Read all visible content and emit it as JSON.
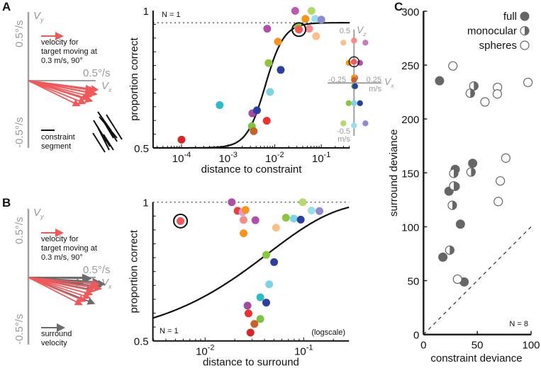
{
  "panel_letters": {
    "a": "A",
    "b": "B",
    "c": "C"
  },
  "diagram_a": {
    "vy_label": "V",
    "vy_sub": "y",
    "vx_label": "V",
    "vx_sub": "x",
    "pos_label": "0.5°/s",
    "neg_label": "-0.5°/s",
    "x_pos_label": "0.5°/s",
    "legend_red": [
      "velocity for",
      "target moving at",
      "0.3 m/s, 90°"
    ],
    "legend_black": [
      "constraint",
      "segment"
    ],
    "red_color": "#f0585a",
    "target_vectors": [
      [
        0.56,
        -0.075
      ],
      [
        0.59,
        -0.09
      ],
      [
        0.57,
        -0.11
      ],
      [
        0.55,
        -0.14
      ],
      [
        0.53,
        -0.16
      ],
      [
        0.56,
        -0.18
      ],
      [
        0.5,
        -0.2
      ],
      [
        0.45,
        -0.22
      ],
      [
        0.6,
        -0.12
      ],
      [
        0.61,
        -0.08
      ]
    ]
  },
  "diagram_b": {
    "vy_label": "V",
    "vy_sub": "y",
    "vx_label": "V",
    "vx_sub": "x",
    "pos_label": "0.5°/s",
    "neg_label": "-0.5°/s",
    "x_pos_label": "0.5°/s",
    "legend_red": [
      "velocity for",
      "target moving at",
      "0.3 m/s, 90°"
    ],
    "legend_gray": [
      "surround",
      "velocity"
    ],
    "red_color": "#f0585a",
    "surround_color": "#6b6b6b",
    "target_vectors": [
      [
        0.62,
        -0.06
      ],
      [
        0.6,
        -0.09
      ],
      [
        0.58,
        -0.12
      ],
      [
        0.56,
        -0.15
      ],
      [
        0.54,
        -0.18
      ],
      [
        0.5,
        -0.21
      ],
      [
        0.47,
        -0.24
      ],
      [
        0.64,
        -0.1
      ]
    ],
    "surround_vectors": [
      [
        0.53,
        0.0
      ],
      [
        0.55,
        -0.01
      ],
      [
        0.62,
        -0.04
      ],
      [
        0.67,
        -0.06
      ],
      [
        0.64,
        -0.08
      ],
      [
        0.57,
        -0.11
      ],
      [
        0.58,
        -0.23
      ],
      [
        0.48,
        -0.05
      ]
    ]
  },
  "chart_data": [
    {
      "id": "A",
      "type": "scatter",
      "xlabel": "distance to constraint",
      "ylabel": "proportion correct",
      "xscale": "log",
      "xlim_log10": [
        -4.61,
        -0.39
      ],
      "ylim": [
        0.5,
        1
      ],
      "xticks": [
        {
          "base": "10",
          "exp": "-4",
          "log": -4
        },
        {
          "base": "10",
          "exp": "-3",
          "log": -3
        },
        {
          "base": "10",
          "exp": "-2",
          "log": -2
        },
        {
          "base": "10",
          "exp": "-1",
          "log": -1
        }
      ],
      "yticks": [
        {
          "label": "1",
          "value": 1
        },
        {
          "label": "0.5",
          "value": 0.5
        }
      ],
      "annotation": "N = 1",
      "ceiling": 0.956,
      "fit": {
        "kind": "logistic",
        "lower": 0.5,
        "upper": 0.956,
        "mid_log10": -2.2,
        "scale_log10": 0.2
      },
      "points": [
        {
          "log10": -4.0,
          "p": 0.53,
          "color": "#d62728"
        },
        {
          "log10": -3.18,
          "p": 0.656,
          "color": "#2bbcc8"
        },
        {
          "log10": -2.48,
          "p": 0.626,
          "color": "#a04aa0"
        },
        {
          "log10": -2.38,
          "p": 0.637,
          "color": "#2a3f9f"
        },
        {
          "log10": -2.49,
          "p": 0.579,
          "color": "#7cc440"
        },
        {
          "log10": -2.45,
          "p": 0.561,
          "color": "#c8622a"
        },
        {
          "log10": -2.17,
          "p": 0.599,
          "color": "#ee3030"
        },
        {
          "log10": -2.1,
          "p": 0.704,
          "color": "#7dd3e8"
        },
        {
          "log10": -2.13,
          "p": 0.809,
          "color": "#8cc63f"
        },
        {
          "log10": -1.87,
          "p": 0.784,
          "color": "#2a3f9f"
        },
        {
          "log10": -1.93,
          "p": 0.887,
          "color": "#f7941d"
        },
        {
          "log10": -2.16,
          "p": 0.934,
          "color": "#b04fa8"
        },
        {
          "log10": -1.5,
          "p": 0.94,
          "color": "#8cc63f"
        },
        {
          "log10": -1.26,
          "p": 0.934,
          "color": "#f48c8c"
        },
        {
          "log10": -1.11,
          "p": 0.907,
          "color": "#fdbf8a"
        },
        {
          "log10": -1.56,
          "p": 0.999,
          "color": "#b85cb0"
        },
        {
          "log10": -1.21,
          "p": 0.999,
          "color": "#b5d96b"
        },
        {
          "log10": -1.34,
          "p": 0.97,
          "color": "#f7941d"
        },
        {
          "log10": -1.13,
          "p": 0.97,
          "color": "#9ddcef"
        },
        {
          "log10": -1.0,
          "p": 0.967,
          "color": "#8e8bd0"
        },
        {
          "log10": -1.48,
          "p": 0.931,
          "color": "#ef5a5a",
          "circled": true
        }
      ],
      "inset": {
        "z_label": "V",
        "z_sub": "z",
        "x_label": "V",
        "x_sub": "x",
        "z_top": "0.5",
        "z_bottom": "-0.5",
        "z_unit": "m/s",
        "x_left": "-0.25",
        "x_right": "0.25",
        "x_unit": "m/s",
        "points": [
          {
            "vx": -0.1,
            "vz": 0.38,
            "color": "#fdbf8a"
          },
          {
            "vx": 0,
            "vz": 0.4,
            "color": "#f48c8c"
          },
          {
            "vx": 0.107,
            "vz": 0.38,
            "color": "#c77cc0"
          },
          {
            "vx": -0.05,
            "vz": 0.19,
            "color": "#f7941d"
          },
          {
            "vx": 0.056,
            "vz": 0.19,
            "color": "#b04fa8"
          },
          {
            "vx": 0,
            "vz": 0.2,
            "color": "#ef5a5a",
            "circled": true
          },
          {
            "vx": 0.01,
            "vz": 0.05,
            "color": "#b04fa8"
          },
          {
            "vx": 0,
            "vz": 0.053,
            "color": "#f7941d"
          },
          {
            "vx": 0,
            "vz": 0.03,
            "color": "#c8622a"
          },
          {
            "vx": 0,
            "vz": -0.03,
            "color": "#7cc440"
          },
          {
            "vx": 0.01,
            "vz": -0.03,
            "color": "#2a3f9f"
          },
          {
            "vx": -0.05,
            "vz": -0.19,
            "color": "#8cc63f"
          },
          {
            "vx": 0,
            "vz": -0.19,
            "color": "#7dd3e8"
          },
          {
            "vx": 0.056,
            "vz": -0.19,
            "color": "#2a3f9f"
          },
          {
            "vx": -0.1,
            "vz": -0.38,
            "color": "#b5d96b"
          },
          {
            "vx": 0,
            "vz": -0.4,
            "color": "#9ddcef"
          },
          {
            "vx": 0.107,
            "vz": -0.38,
            "color": "#8e8bd0"
          }
        ]
      }
    },
    {
      "id": "B",
      "type": "scatter",
      "xlabel": "distance to surround",
      "ylabel": "proportion correct",
      "xscale": "log",
      "xlim_log10": [
        -2.53,
        -0.54
      ],
      "ylim": [
        0.5,
        1
      ],
      "xticks": [
        {
          "base": "10",
          "exp": "-2",
          "log": -2
        },
        {
          "base": "10",
          "exp": "-1",
          "log": -1
        }
      ],
      "yticks": [
        {
          "label": "1",
          "value": 1
        },
        {
          "label": "0.5",
          "value": 0.5
        }
      ],
      "annotation": "N = 1",
      "scale_note": "(logscale)",
      "ceiling": 1.0,
      "fit": {
        "kind": "weibull",
        "alpha": 0.0439,
        "beta": 0.635
      },
      "points": [
        {
          "log10": -2.25,
          "p": 0.932,
          "color": "#ef5a5a",
          "circled": true
        },
        {
          "log10": -1.73,
          "p": 1.0,
          "color": "#b04fa8"
        },
        {
          "log10": -1.67,
          "p": 0.969,
          "color": "#ee3a3a"
        },
        {
          "log10": -1.62,
          "p": 0.964,
          "color": "#e0a0d0"
        },
        {
          "log10": -1.59,
          "p": 0.972,
          "color": "#f7941d"
        },
        {
          "log10": -1.61,
          "p": 0.936,
          "color": "#f48c8c"
        },
        {
          "log10": -1.49,
          "p": 0.935,
          "color": "#b04fa8"
        },
        {
          "log10": -1.61,
          "p": 0.888,
          "color": "#f7941d"
        },
        {
          "log10": -1.28,
          "p": 0.908,
          "color": "#fdbf8a"
        },
        {
          "log10": -1.18,
          "p": 0.944,
          "color": "#8cc63f"
        },
        {
          "log10": -1.1,
          "p": 0.941,
          "color": "#7dd3e8"
        },
        {
          "log10": -1.03,
          "p": 0.937,
          "color": "#2a3f9f"
        },
        {
          "log10": -1.01,
          "p": 1.0,
          "color": "#b5d96b"
        },
        {
          "log10": -0.92,
          "p": 0.97,
          "color": "#9ddcef"
        },
        {
          "log10": -0.84,
          "p": 0.968,
          "color": "#8e8bd0"
        },
        {
          "log10": -1.38,
          "p": 0.81,
          "color": "#8cc63f"
        },
        {
          "log10": -1.3,
          "p": 0.784,
          "color": "#2a3f9f"
        },
        {
          "log10": -1.35,
          "p": 0.704,
          "color": "#7dd3e8"
        },
        {
          "log10": -1.44,
          "p": 0.657,
          "color": "#2bbcc8"
        },
        {
          "log10": -1.38,
          "p": 0.638,
          "color": "#2a3f9f"
        },
        {
          "log10": -1.57,
          "p": 0.627,
          "color": "#a04aa0"
        },
        {
          "log10": -1.56,
          "p": 0.599,
          "color": "#ee3030"
        },
        {
          "log10": -1.44,
          "p": 0.579,
          "color": "#7cc440"
        },
        {
          "log10": -1.5,
          "p": 0.561,
          "color": "#c8622a"
        },
        {
          "log10": -1.54,
          "p": 0.53,
          "color": "#d62728"
        }
      ]
    },
    {
      "id": "C",
      "type": "scatter",
      "xlabel": "constraint deviance",
      "ylabel": "surround deviance",
      "xlim": [
        0,
        100
      ],
      "ylim": [
        0,
        300
      ],
      "xticks": [
        "0",
        "50",
        "100"
      ],
      "xtick_values": [
        0,
        50,
        100
      ],
      "yticks": [
        "0",
        "50",
        "100",
        "150",
        "200",
        "250",
        "300"
      ],
      "ytick_values": [
        0,
        50,
        100,
        150,
        200,
        250,
        300
      ],
      "annotation": "N = 8",
      "identity_line": true,
      "legend": {
        "placement": "top-right",
        "items": [
          {
            "label": "full",
            "style": "full"
          },
          {
            "label": "monocular",
            "style": "monocular"
          },
          {
            "label": "spheres",
            "style": "spheres"
          }
        ]
      },
      "marker_color": "#666666",
      "points": [
        {
          "x": 14.9,
          "y": 235.4,
          "cond": "full"
        },
        {
          "x": 45.7,
          "y": 158.9,
          "cond": "full"
        },
        {
          "x": 29.5,
          "y": 153.2,
          "cond": "full"
        },
        {
          "x": 29.5,
          "y": 137.4,
          "cond": "full"
        },
        {
          "x": 23.7,
          "y": 133.0,
          "cond": "full"
        },
        {
          "x": 34.3,
          "y": 102.4,
          "cond": "full"
        },
        {
          "x": 18.0,
          "y": 71.8,
          "cond": "full"
        },
        {
          "x": 37.8,
          "y": 48.8,
          "cond": "full"
        },
        {
          "x": 46.8,
          "y": 230.6,
          "cond": "monocular"
        },
        {
          "x": 43.5,
          "y": 223.9,
          "cond": "monocular"
        },
        {
          "x": 44.2,
          "y": 150.8,
          "cond": "monocular"
        },
        {
          "x": 28.1,
          "y": 149.5,
          "cond": "monocular"
        },
        {
          "x": 28.1,
          "y": 137.9,
          "cond": "monocular"
        },
        {
          "x": 26.8,
          "y": 119.9,
          "cond": "monocular"
        },
        {
          "x": 24.4,
          "y": 78.3,
          "cond": "monocular"
        },
        {
          "x": 27.3,
          "y": 249.2,
          "cond": "spheres"
        },
        {
          "x": 68.8,
          "y": 229.3,
          "cond": "spheres"
        },
        {
          "x": 68.6,
          "y": 223.2,
          "cond": "spheres"
        },
        {
          "x": 57.1,
          "y": 215.8,
          "cond": "spheres"
        },
        {
          "x": 97.1,
          "y": 233.9,
          "cond": "spheres"
        },
        {
          "x": 76.5,
          "y": 163.7,
          "cond": "spheres"
        },
        {
          "x": 71.4,
          "y": 142.5,
          "cond": "spheres"
        },
        {
          "x": 69.5,
          "y": 123.4,
          "cond": "spheres"
        },
        {
          "x": 31.6,
          "y": 51.4,
          "cond": "spheres"
        }
      ]
    }
  ]
}
